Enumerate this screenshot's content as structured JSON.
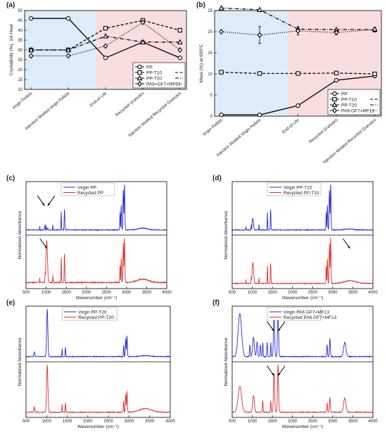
{
  "chart_data": [
    {
      "panel": "(a)",
      "type": "line",
      "ylabel": "Crystallinity (%), 1st Heat",
      "ylim": [
        10,
        50
      ],
      "yticks": [
        10,
        15,
        20,
        25,
        30,
        35,
        40,
        45,
        50
      ],
      "categories": [
        "Virgin Pellets",
        "Injection Molded Virgin Pellets",
        "End-of-Life",
        "Recycled Granules",
        "Injection Molded Recycled Granules"
      ],
      "background": {
        "virgin_color": "#dcecf8",
        "recycled_color": "#f9dedf"
      },
      "series": [
        {
          "name": "PP",
          "marker": "circle",
          "dash": "solid",
          "values": [
            46,
            46,
            26,
            34,
            26
          ]
        },
        {
          "name": "PP-T10",
          "marker": "square",
          "dash": "dash",
          "values": [
            30,
            30,
            41,
            45,
            40
          ]
        },
        {
          "name": "PP-T20",
          "marker": "triangle",
          "dash": "dashdot",
          "values": [
            30,
            30,
            37,
            34,
            34
          ]
        },
        {
          "name": "PA6+GF7+MF13",
          "marker": "diamond",
          "dash": "dot",
          "values": [
            27,
            27,
            32,
            44,
            30
          ]
        }
      ]
    },
    {
      "panel": "(b)",
      "type": "line",
      "ylabel": "Mass (%) at 600°C",
      "ylim": [
        0,
        25
      ],
      "yticks": [
        0,
        5,
        10,
        15,
        20,
        25
      ],
      "categories": [
        "Virgin Pellets",
        "Injection Molded Virgin Pellets",
        "End-of-Life",
        "Recycled Granules",
        "Injection Molded Recycled Granules"
      ],
      "background": {
        "virgin_color": "#dcecf8",
        "recycled_color": "#f9dedf"
      },
      "series": [
        {
          "name": "PP",
          "marker": "circle",
          "dash": "solid",
          "values": [
            0.3,
            0.3,
            2.5,
            8.5,
            9.5
          ]
        },
        {
          "name": "PP-T10",
          "marker": "square",
          "dash": "dash",
          "values": [
            10.4,
            10.1,
            10.1,
            10.2,
            10.0
          ]
        },
        {
          "name": "PP-T20",
          "marker": "triangle",
          "dash": "dashdot",
          "values": [
            25.6,
            25.2,
            20.6,
            20.5,
            20.5
          ]
        },
        {
          "name": "PA6-GF7+MF13",
          "marker": "diamond",
          "dash": "dot",
          "values": [
            20,
            19.2,
            20.2,
            19.8,
            20.5
          ],
          "error": [
            0,
            2,
            1,
            0.5,
            0.6
          ]
        }
      ]
    },
    {
      "panel": "(c)",
      "type": "line",
      "xlabel": "Wavenumber (cm⁻¹)",
      "ylabel": "Normalized Absorbance",
      "xlim": [
        500,
        4000
      ],
      "xticks": [
        500,
        1000,
        1500,
        2000,
        2500,
        3000,
        3500,
        4000
      ],
      "series": [
        {
          "name": "Virgin PP",
          "color": "#2b2bd6",
          "position": "top"
        },
        {
          "name": "Recycled PP",
          "color": "#e03030",
          "position": "bottom"
        }
      ],
      "arrows_at_wavenumber": [
        {
          "x": 960,
          "spectrum": "top"
        },
        {
          "x": 1040,
          "spectrum": "top"
        },
        {
          "x": 1020,
          "spectrum": "bottom"
        }
      ]
    },
    {
      "panel": "(d)",
      "type": "line",
      "xlabel": "Wavenumber (cm⁻¹)",
      "ylabel": "Normalized Absorbance",
      "xlim": [
        500,
        4000
      ],
      "xticks": [
        500,
        1000,
        1500,
        2000,
        2500,
        3000,
        3500,
        4000
      ],
      "series": [
        {
          "name": "Virgin PP-T10",
          "color": "#2b2bd6",
          "position": "top"
        },
        {
          "name": "Recycled PP-T10",
          "color": "#e03030",
          "position": "bottom"
        }
      ],
      "arrows_at_wavenumber": [
        {
          "x": 3430,
          "spectrum": "bottom"
        }
      ]
    },
    {
      "panel": "(e)",
      "type": "line",
      "xlabel": "Wavenumber (cm⁻¹)",
      "ylabel": "Normalized Absorbance",
      "xlim": [
        500,
        4000
      ],
      "xticks": [
        500,
        1000,
        1500,
        2000,
        2500,
        3000,
        3500,
        4000
      ],
      "series": [
        {
          "name": "Virgin PP-T20",
          "color": "#2b2bd6",
          "position": "top"
        },
        {
          "name": "Recycled PP-T20",
          "color": "#e03030",
          "position": "bottom"
        }
      ]
    },
    {
      "panel": "(f)",
      "type": "line",
      "xlabel": "Wavenumber (cm⁻¹)",
      "ylabel": "Normalized Absorbance",
      "xlim": [
        500,
        4000
      ],
      "xticks": [
        500,
        1000,
        1500,
        2000,
        2500,
        3000,
        3500,
        4000
      ],
      "series": [
        {
          "name": "Virgin PA6 GF7+MF13",
          "color": "#2b2bd6",
          "position": "top"
        },
        {
          "name": "Recycled PA6 GF7+MF13",
          "color": "#e03030",
          "position": "bottom"
        }
      ],
      "arrows_at_wavenumber": [
        {
          "x": 1540,
          "spectrum": "top"
        },
        {
          "x": 1640,
          "spectrum": "top"
        },
        {
          "x": 1540,
          "spectrum": "bottom"
        },
        {
          "x": 1640,
          "spectrum": "bottom"
        }
      ]
    }
  ]
}
